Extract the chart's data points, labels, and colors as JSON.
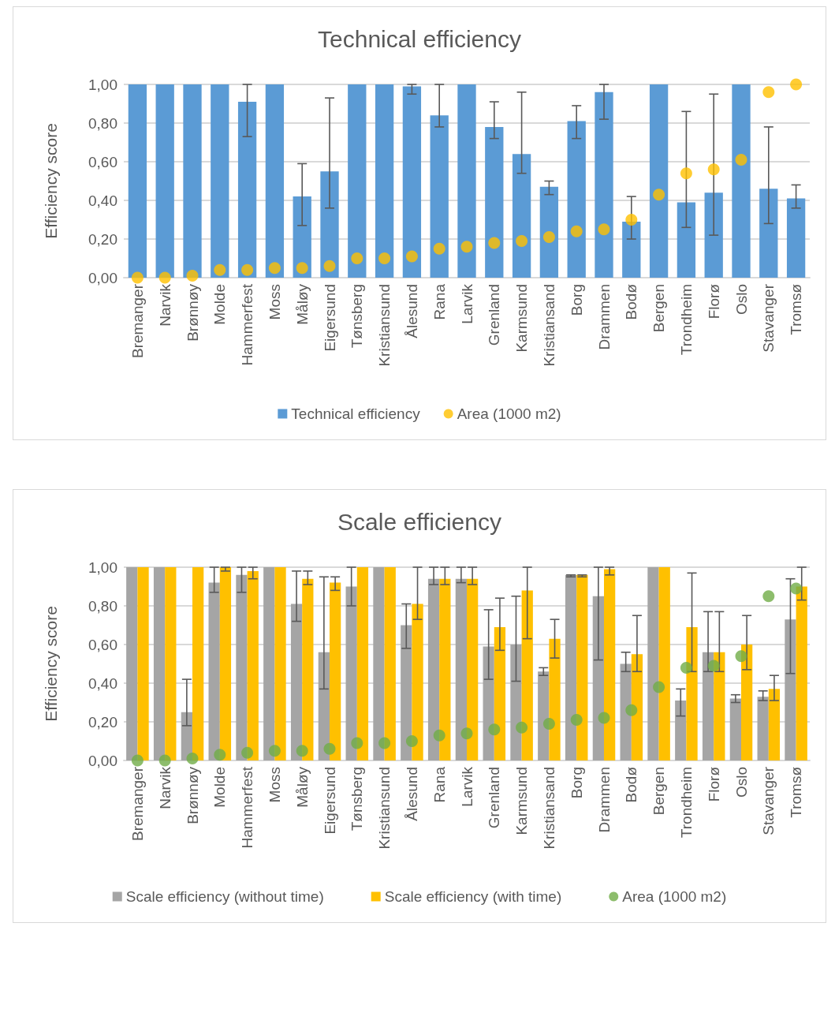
{
  "chart_data": [
    {
      "type": "bar",
      "title": "Technical efficiency",
      "ylabel": "Efficiency score",
      "categories": [
        "Bremanger",
        "Narvik",
        "Brønnøy",
        "Molde",
        "Hammerfest",
        "Moss",
        "Måløy",
        "Eigersund",
        "Tønsberg",
        "Kristiansund",
        "Ålesund",
        "Rana",
        "Larvik",
        "Grenland",
        "Karmsund",
        "Kristiansand",
        "Borg",
        "Drammen",
        "Bodø",
        "Bergen",
        "Trondheim",
        "Florø",
        "Oslo",
        "Stavanger",
        "Tromsø"
      ],
      "series": [
        {
          "name": "Technical efficiency",
          "color": "#5b9bd5",
          "values": [
            1,
            1,
            1,
            1,
            0.91,
            1,
            0.42,
            0.55,
            1,
            1,
            0.99,
            0.84,
            1,
            0.78,
            0.64,
            0.47,
            0.81,
            0.96,
            0.29,
            1,
            0.39,
            0.44,
            1,
            0.46,
            0.41
          ],
          "errors": [
            null,
            null,
            null,
            null,
            [
              0.73,
              1
            ],
            null,
            [
              0.27,
              0.59
            ],
            [
              0.36,
              0.93
            ],
            null,
            null,
            [
              0.95,
              1
            ],
            [
              0.78,
              1
            ],
            null,
            [
              0.72,
              0.91
            ],
            [
              0.54,
              0.96
            ],
            [
              0.43,
              0.5
            ],
            [
              0.72,
              0.89
            ],
            [
              0.82,
              1
            ],
            [
              0.2,
              0.42
            ],
            null,
            [
              0.26,
              0.86
            ],
            [
              0.22,
              0.95
            ],
            null,
            [
              0.28,
              0.78
            ],
            [
              0.36,
              0.48
            ]
          ]
        },
        {
          "name": "Area (1000 m2)",
          "type": "scatter",
          "marker": "circle",
          "color": "#ffc000",
          "values": [
            0,
            0,
            0.01,
            0.04,
            0.04,
            0.05,
            0.05,
            0.06,
            0.1,
            0.1,
            0.11,
            0.15,
            0.16,
            0.18,
            0.19,
            0.21,
            0.24,
            0.25,
            0.3,
            0.43,
            0.54,
            0.56,
            0.61,
            0.96,
            1
          ]
        }
      ],
      "ylim": [
        0,
        1
      ],
      "yticks": [
        {
          "value": 0,
          "label": "0,00"
        },
        {
          "value": 0.2,
          "label": "0,20"
        },
        {
          "value": 0.4,
          "label": "0,40"
        },
        {
          "value": 0.6,
          "label": "0,60"
        },
        {
          "value": 0.8,
          "label": "0,80"
        },
        {
          "value": 1,
          "label": "1,00"
        }
      ],
      "grid": "y",
      "legend": "bottom"
    },
    {
      "type": "bar",
      "title": "Scale efficiency",
      "ylabel": "Efficiency score",
      "categories": [
        "Bremanger",
        "Narvik",
        "Brønnøy",
        "Molde",
        "Hammerfest",
        "Moss",
        "Måløy",
        "Eigersund",
        "Tønsberg",
        "Kristiansund",
        "Ålesund",
        "Rana",
        "Larvik",
        "Grenland",
        "Karmsund",
        "Kristiansand",
        "Borg",
        "Drammen",
        "Bodø",
        "Bergen",
        "Trondheim",
        "Florø",
        "Oslo",
        "Stavanger",
        "Tromsø"
      ],
      "series": [
        {
          "name": "Scale efficiency (without time)",
          "color": "#a5a5a5",
          "values": [
            1,
            1,
            0.25,
            0.92,
            0.96,
            1,
            0.81,
            0.56,
            0.9,
            1,
            0.7,
            0.94,
            0.94,
            0.59,
            0.6,
            0.46,
            0.96,
            0.85,
            0.5,
            1,
            0.31,
            0.56,
            0.32,
            0.33,
            0.73
          ],
          "errors": [
            null,
            null,
            [
              0.18,
              0.42
            ],
            [
              0.87,
              1
            ],
            [
              0.87,
              1
            ],
            null,
            [
              0.72,
              0.98
            ],
            [
              0.37,
              0.95
            ],
            [
              0.8,
              1
            ],
            null,
            [
              0.58,
              0.81
            ],
            [
              0.91,
              1
            ],
            [
              0.92,
              1
            ],
            [
              0.42,
              0.78
            ],
            [
              0.41,
              0.85
            ],
            [
              0.44,
              0.48
            ],
            [
              0.95,
              0.96
            ],
            [
              0.52,
              1
            ],
            [
              0.46,
              0.56
            ],
            null,
            [
              0.23,
              0.37
            ],
            [
              0.46,
              0.77
            ],
            [
              0.3,
              0.34
            ],
            [
              0.31,
              0.36
            ],
            [
              0.45,
              0.94
            ]
          ]
        },
        {
          "name": "Scale efficiency (with time)",
          "color": "#ffc000",
          "values": [
            1,
            1,
            1,
            1,
            0.98,
            1,
            0.94,
            0.92,
            1,
            1,
            0.81,
            0.94,
            0.94,
            0.69,
            0.88,
            0.63,
            0.96,
            0.99,
            0.55,
            1,
            0.69,
            0.56,
            0.6,
            0.37,
            0.9
          ],
          "errors": [
            null,
            null,
            null,
            [
              0.98,
              1
            ],
            [
              0.94,
              1
            ],
            null,
            [
              0.91,
              0.98
            ],
            [
              0.88,
              0.95
            ],
            null,
            null,
            [
              0.73,
              1
            ],
            [
              0.91,
              1
            ],
            [
              0.91,
              1
            ],
            [
              0.57,
              0.84
            ],
            [
              0.63,
              1
            ],
            [
              0.53,
              0.73
            ],
            [
              0.95,
              0.96
            ],
            [
              0.96,
              1
            ],
            [
              0.46,
              0.75
            ],
            null,
            [
              0.46,
              0.97
            ],
            [
              0.46,
              0.77
            ],
            [
              0.47,
              0.75
            ],
            [
              0.31,
              0.44
            ],
            [
              0.83,
              1
            ]
          ]
        },
        {
          "name": "Area (1000 m2)",
          "type": "scatter",
          "marker": "circle",
          "color": "#70ad47",
          "values": [
            0,
            0,
            0.01,
            0.03,
            0.04,
            0.05,
            0.05,
            0.06,
            0.09,
            0.09,
            0.1,
            0.13,
            0.14,
            0.16,
            0.17,
            0.19,
            0.21,
            0.22,
            0.26,
            0.38,
            0.48,
            0.49,
            0.54,
            0.85,
            0.89
          ]
        }
      ],
      "ylim": [
        0,
        1
      ],
      "yticks": [
        {
          "value": 0,
          "label": "0,00"
        },
        {
          "value": 0.2,
          "label": "0,20"
        },
        {
          "value": 0.4,
          "label": "0,40"
        },
        {
          "value": 0.6,
          "label": "0,60"
        },
        {
          "value": 0.8,
          "label": "0,80"
        },
        {
          "value": 1,
          "label": "1,00"
        }
      ],
      "grid": "y",
      "legend": "bottom"
    }
  ]
}
